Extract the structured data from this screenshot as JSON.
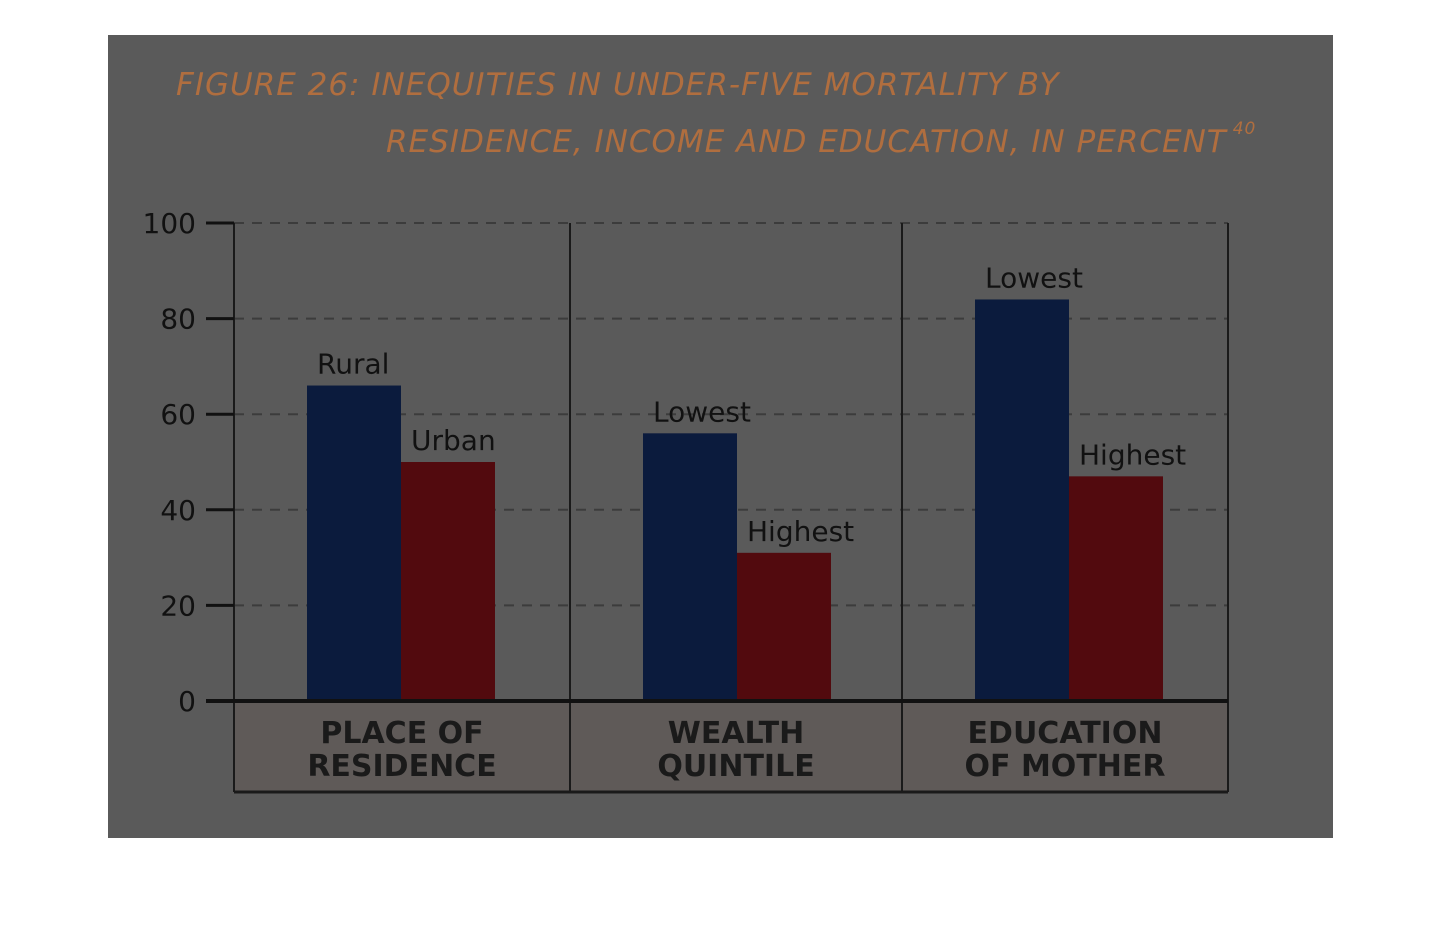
{
  "title": {
    "line1": "FIGURE 26: INEQUITIES IN UNDER-FIVE MORTALITY BY",
    "line2": "RESIDENCE, INCOME AND EDUCATION, IN PERCENT",
    "footnote": "40"
  },
  "colors": {
    "high_group": "#0b1b3d",
    "low_group": "#520a0e",
    "background": "#5a5a5a"
  },
  "chart_data": {
    "type": "bar",
    "ylim": [
      0,
      100
    ],
    "yticks": [
      0,
      20,
      40,
      60,
      80,
      100
    ],
    "grid": true,
    "groups": [
      {
        "category_lines": [
          "PLACE OF",
          "RESIDENCE"
        ],
        "bars": [
          {
            "label": "Rural",
            "value": 66,
            "color": "#0b1b3d"
          },
          {
            "label": "Urban",
            "value": 50,
            "color": "#520a0e"
          }
        ]
      },
      {
        "category_lines": [
          "WEALTH",
          "QUINTILE"
        ],
        "bars": [
          {
            "label": "Lowest",
            "value": 56,
            "color": "#0b1b3d"
          },
          {
            "label": "Highest",
            "value": 31,
            "color": "#520a0e"
          }
        ]
      },
      {
        "category_lines": [
          "EDUCATION",
          "OF MOTHER"
        ],
        "bars": [
          {
            "label": "Lowest",
            "value": 84,
            "color": "#0b1b3d"
          },
          {
            "label": "Highest",
            "value": 47,
            "color": "#520a0e"
          }
        ]
      }
    ]
  }
}
